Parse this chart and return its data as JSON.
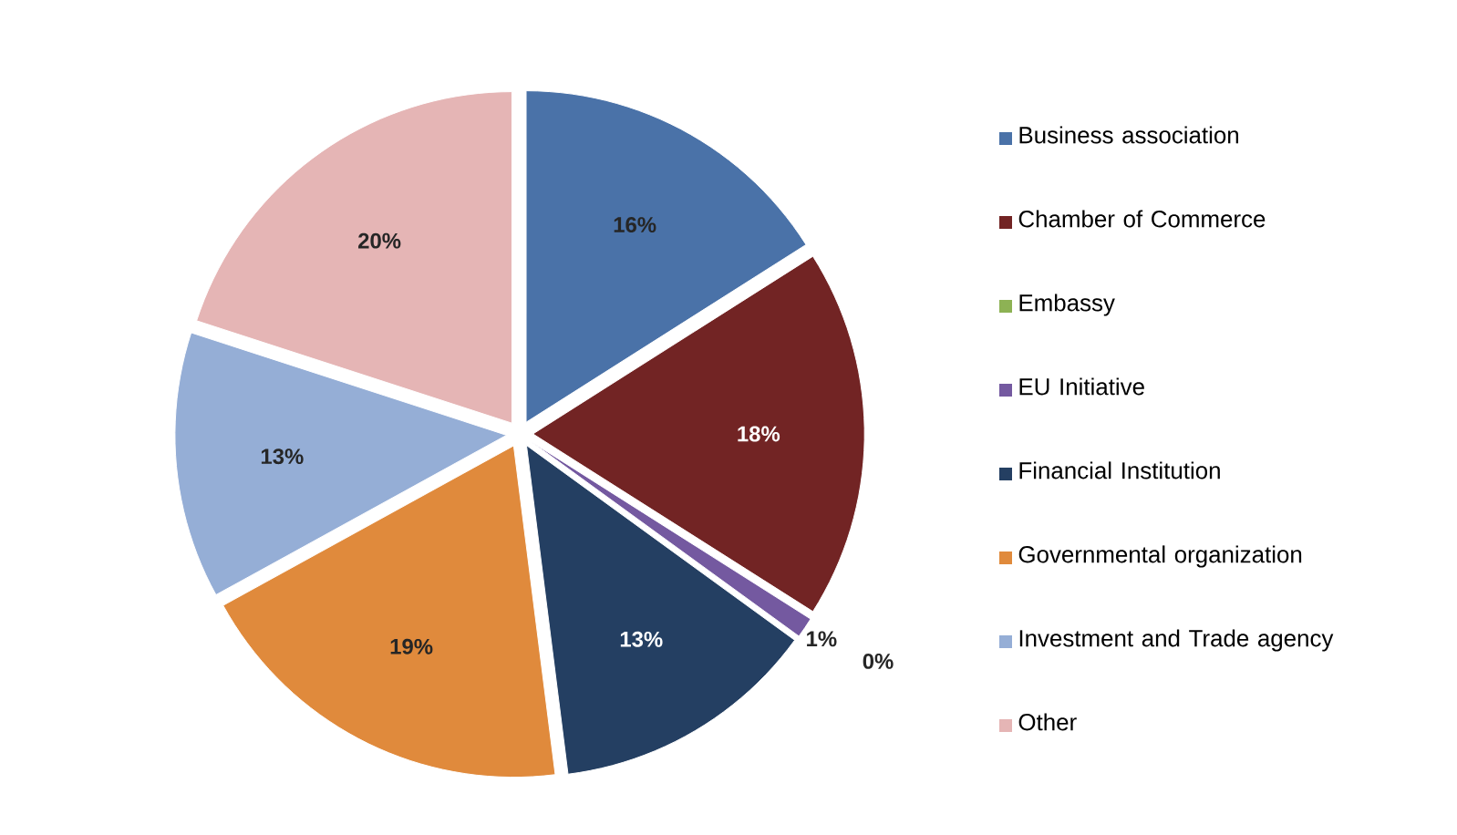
{
  "chart_data": {
    "type": "pie",
    "categories": [
      "Business association",
      "Chamber of Commerce",
      "Embassy",
      "EU Initiative",
      "Financial Institution",
      "Governmental organization",
      "Investment and Trade agency",
      "Other"
    ],
    "values": [
      16,
      18,
      0,
      1,
      13,
      19,
      13,
      20
    ],
    "colors": [
      "#4a72a8",
      "#722424",
      "#8db254",
      "#7459a0",
      "#243f62",
      "#e08a3c",
      "#95aed6",
      "#e5b5b5"
    ],
    "value_labels": [
      "16%",
      "18%",
      "0%",
      "1%",
      "13%",
      "19%",
      "13%",
      "20%"
    ],
    "legend": "right"
  }
}
